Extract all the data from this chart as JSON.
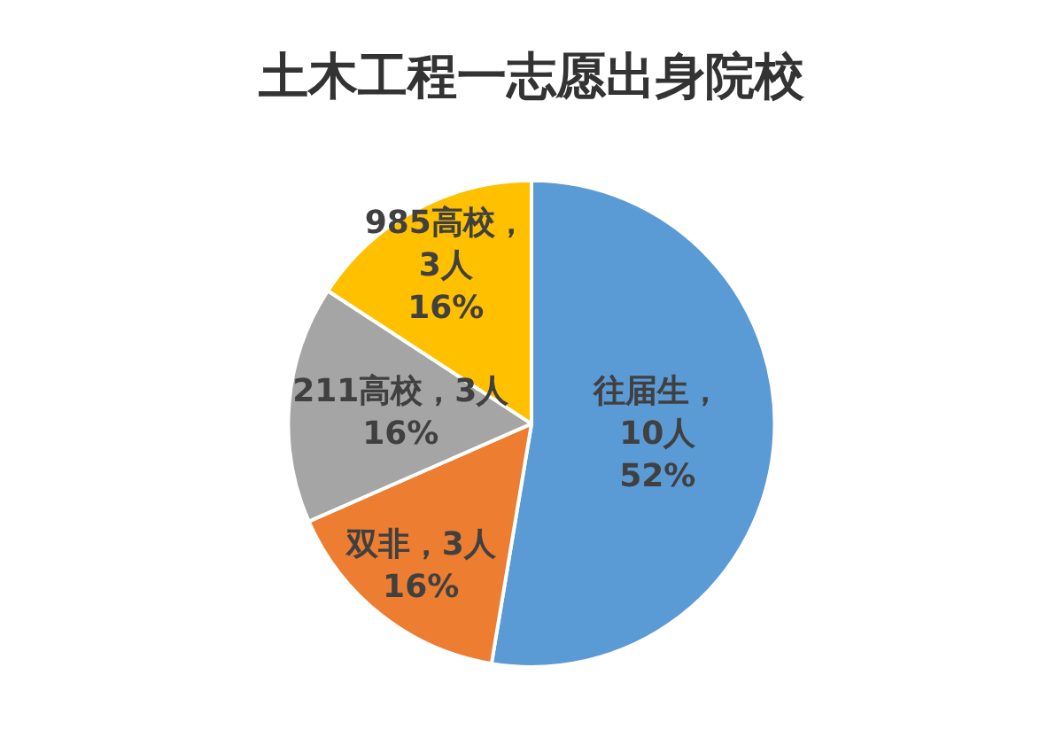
{
  "chart_data": {
    "type": "pie",
    "title": "土木工程一志愿出身院校",
    "categories": [
      "往届生",
      "双非",
      "211高校",
      "985高校"
    ],
    "values": [
      10,
      3,
      3,
      3
    ],
    "colors": [
      "#5b9bd5",
      "#ed7d31",
      "#a5a5a5",
      "#ffc000"
    ],
    "value_labels": [
      "，\n10人\n52%",
      "，3人\n16%",
      "，3人\n16%",
      "，\n3人\n16%"
    ],
    "legend": false
  }
}
